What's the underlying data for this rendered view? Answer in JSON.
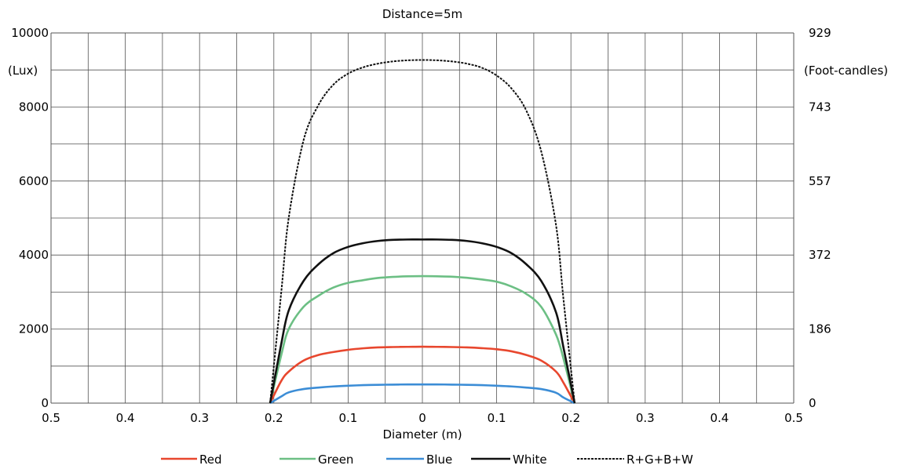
{
  "chart_data": {
    "type": "line",
    "title": "Distance=5m",
    "xlabel": "Diameter (m)",
    "ylabel_left": "(Lux)",
    "ylabel_right": "(Foot-candles)",
    "xlim": [
      -0.5,
      0.5
    ],
    "ylim": [
      0,
      10000
    ],
    "grid": true,
    "legend_position": "bottom",
    "x_ticks": [
      {
        "value": -0.5,
        "label": "0.5"
      },
      {
        "value": -0.4,
        "label": "0.4"
      },
      {
        "value": -0.3,
        "label": "0.3"
      },
      {
        "value": -0.2,
        "label": "0.2"
      },
      {
        "value": -0.1,
        "label": "0.1"
      },
      {
        "value": 0,
        "label": "0"
      },
      {
        "value": 0.1,
        "label": "0.1"
      },
      {
        "value": 0.2,
        "label": "0.2"
      },
      {
        "value": 0.3,
        "label": "0.3"
      },
      {
        "value": 0.4,
        "label": "0.4"
      },
      {
        "value": 0.5,
        "label": "0.5"
      }
    ],
    "y_ticks_left": [
      {
        "value": 0,
        "label": "0"
      },
      {
        "value": 2000,
        "label": "2000"
      },
      {
        "value": 4000,
        "label": "4000"
      },
      {
        "value": 6000,
        "label": "6000"
      },
      {
        "value": 8000,
        "label": "8000"
      },
      {
        "value": 10000,
        "label": "10000"
      }
    ],
    "y_ticks_right": [
      {
        "value": 0,
        "label": "0"
      },
      {
        "value": 2000,
        "label": "186"
      },
      {
        "value": 4000,
        "label": "372"
      },
      {
        "value": 6000,
        "label": "557"
      },
      {
        "value": 8000,
        "label": "743"
      },
      {
        "value": 10000,
        "label": "929"
      }
    ],
    "x": [
      -0.205,
      -0.19,
      -0.18,
      -0.16,
      -0.14,
      -0.12,
      -0.1,
      -0.08,
      -0.06,
      -0.04,
      -0.02,
      0,
      0.02,
      0.04,
      0.06,
      0.08,
      0.1,
      0.12,
      0.14,
      0.16,
      0.18,
      0.19,
      0.205
    ],
    "series": [
      {
        "name": "Red",
        "color": "#e8472e",
        "style": "solid",
        "values": [
          0,
          600,
          850,
          1150,
          1300,
          1380,
          1440,
          1480,
          1505,
          1515,
          1520,
          1525,
          1520,
          1515,
          1505,
          1485,
          1455,
          1400,
          1300,
          1150,
          850,
          550,
          0
        ]
      },
      {
        "name": "Green",
        "color": "#6cbf84",
        "style": "solid",
        "values": [
          0,
          1300,
          2000,
          2600,
          2900,
          3120,
          3250,
          3320,
          3380,
          3410,
          3425,
          3430,
          3425,
          3415,
          3385,
          3340,
          3280,
          3150,
          2950,
          2600,
          1850,
          1200,
          0
        ]
      },
      {
        "name": "Blue",
        "color": "#3c8dd6",
        "style": "solid",
        "values": [
          0,
          180,
          290,
          380,
          420,
          450,
          470,
          485,
          495,
          500,
          505,
          505,
          505,
          500,
          495,
          485,
          470,
          450,
          420,
          380,
          280,
          150,
          0
        ]
      },
      {
        "name": "White",
        "color": "#111111",
        "style": "solid",
        "values": [
          0,
          1600,
          2500,
          3300,
          3750,
          4050,
          4220,
          4320,
          4380,
          4410,
          4420,
          4420,
          4420,
          4410,
          4380,
          4320,
          4220,
          4050,
          3750,
          3300,
          2450,
          1500,
          0
        ]
      },
      {
        "name": "R+G+B+W",
        "color": "#111111",
        "style": "dashed",
        "values": [
          0,
          3000,
          5000,
          7100,
          8050,
          8600,
          8900,
          9070,
          9170,
          9230,
          9260,
          9270,
          9260,
          9230,
          9170,
          9060,
          8850,
          8500,
          7900,
          6800,
          4800,
          2800,
          0
        ]
      }
    ]
  }
}
